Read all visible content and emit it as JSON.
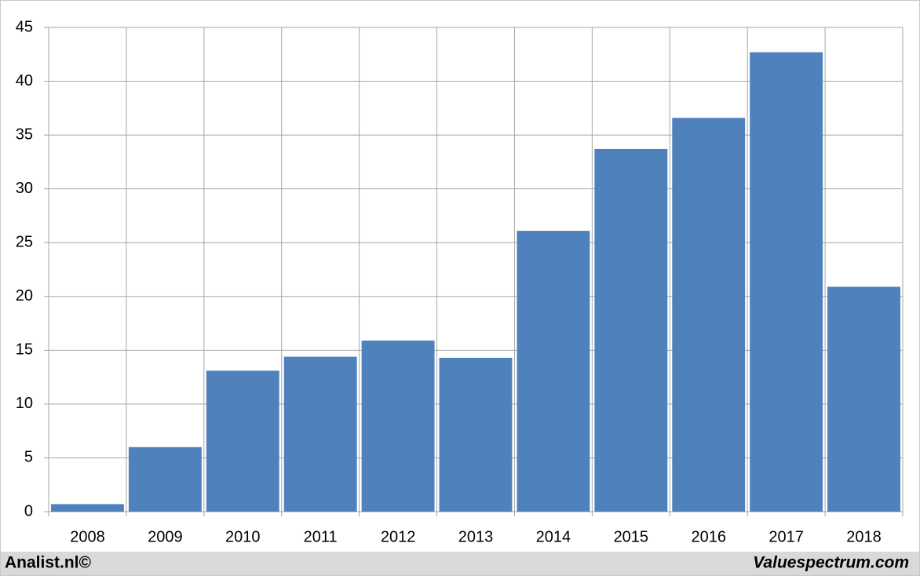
{
  "chart_data": {
    "type": "bar",
    "categories": [
      "2008",
      "2009",
      "2010",
      "2011",
      "2012",
      "2013",
      "2014",
      "2015",
      "2016",
      "2017",
      "2018"
    ],
    "values": [
      0.7,
      6.0,
      13.1,
      14.4,
      15.9,
      14.3,
      26.1,
      33.7,
      36.6,
      42.7,
      20.9
    ],
    "color": "#4f81bd",
    "ylim": [
      0,
      45
    ],
    "yticks": [
      0,
      5,
      10,
      15,
      20,
      25,
      30,
      35,
      40,
      45
    ],
    "grid": true
  },
  "footer": {
    "left": "Analist.nl©",
    "right": "Valuespectrum.com"
  }
}
